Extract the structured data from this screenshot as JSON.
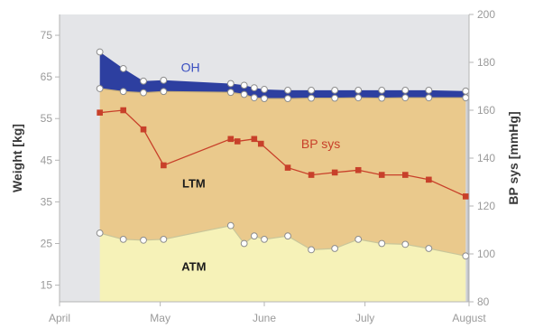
{
  "chart_data": {
    "type": "area",
    "y_left": {
      "label": "Weight  [kg]",
      "range": [
        11,
        80
      ],
      "ticks": [
        15,
        25,
        35,
        45,
        55,
        65,
        75
      ]
    },
    "y_right": {
      "label": "BP sys  [mmHg]",
      "range": [
        80,
        200
      ],
      "ticks": [
        80,
        100,
        120,
        140,
        160,
        180,
        200
      ]
    },
    "x_axis": {
      "range": [
        "2000-04-01",
        "2000-08-01"
      ],
      "tick_labels": [
        "April",
        "May",
        "June",
        "July",
        "August"
      ]
    },
    "series": [
      {
        "name": "ATM",
        "kind": "area",
        "color": "#f6f2b8",
        "points": [
          [
            "2000-04-13",
            27.5
          ],
          [
            "2000-04-20",
            26.0
          ],
          [
            "2000-04-26",
            25.8
          ],
          [
            "2000-05-02",
            26.0
          ],
          [
            "2000-05-22",
            29.3
          ],
          [
            "2000-05-26",
            25.0
          ],
          [
            "2000-05-29",
            26.8
          ],
          [
            "2000-06-01",
            26.0
          ],
          [
            "2000-06-08",
            26.8
          ],
          [
            "2000-06-15",
            23.5
          ],
          [
            "2000-06-22",
            23.8
          ],
          [
            "2000-06-29",
            26.0
          ],
          [
            "2000-07-06",
            25.0
          ],
          [
            "2000-07-13",
            24.8
          ],
          [
            "2000-07-20",
            23.8
          ],
          [
            "2000-07-31",
            22.0
          ]
        ]
      },
      {
        "name": "LTM",
        "kind": "area",
        "color": "#eac98c",
        "points": [
          [
            "2000-04-13",
            62.2
          ],
          [
            "2000-04-20",
            61.5
          ],
          [
            "2000-04-26",
            61.2
          ],
          [
            "2000-05-02",
            61.5
          ],
          [
            "2000-05-22",
            61.3
          ],
          [
            "2000-05-26",
            60.8
          ],
          [
            "2000-05-29",
            60.0
          ],
          [
            "2000-06-01",
            59.8
          ],
          [
            "2000-06-08",
            59.8
          ],
          [
            "2000-06-15",
            59.9
          ],
          [
            "2000-06-22",
            59.9
          ],
          [
            "2000-06-29",
            60.0
          ],
          [
            "2000-07-06",
            59.9
          ],
          [
            "2000-07-13",
            60.0
          ],
          [
            "2000-07-20",
            60.0
          ],
          [
            "2000-07-31",
            60.0
          ]
        ]
      },
      {
        "name": "OH",
        "kind": "area",
        "color": "#2d3fa0",
        "points": [
          [
            "2000-04-13",
            71.0
          ],
          [
            "2000-04-20",
            67.0
          ],
          [
            "2000-04-26",
            64.0
          ],
          [
            "2000-05-02",
            64.2
          ],
          [
            "2000-05-22",
            63.4
          ],
          [
            "2000-05-26",
            63.0
          ],
          [
            "2000-05-29",
            62.4
          ],
          [
            "2000-06-01",
            62.0
          ],
          [
            "2000-06-08",
            61.8
          ],
          [
            "2000-06-15",
            61.8
          ],
          [
            "2000-06-22",
            61.8
          ],
          [
            "2000-06-29",
            61.8
          ],
          [
            "2000-07-06",
            61.8
          ],
          [
            "2000-07-13",
            61.8
          ],
          [
            "2000-07-20",
            61.8
          ],
          [
            "2000-07-31",
            61.6
          ]
        ]
      },
      {
        "name": "BP sys",
        "kind": "line",
        "axis": "right",
        "color": "#c8402a",
        "points": [
          [
            "2000-04-13",
            159
          ],
          [
            "2000-04-20",
            160
          ],
          [
            "2000-04-26",
            152
          ],
          [
            "2000-05-02",
            137
          ],
          [
            "2000-05-22",
            148
          ],
          [
            "2000-05-24",
            147
          ],
          [
            "2000-05-29",
            148
          ],
          [
            "2000-05-31",
            146
          ],
          [
            "2000-06-08",
            136
          ],
          [
            "2000-06-15",
            133
          ],
          [
            "2000-06-22",
            134
          ],
          [
            "2000-06-29",
            135
          ],
          [
            "2000-07-06",
            133
          ],
          [
            "2000-07-13",
            133
          ],
          [
            "2000-07-20",
            131
          ],
          [
            "2000-07-31",
            124
          ]
        ]
      }
    ],
    "annotations": [
      "OH",
      "BP sys",
      "LTM",
      "ATM"
    ]
  }
}
